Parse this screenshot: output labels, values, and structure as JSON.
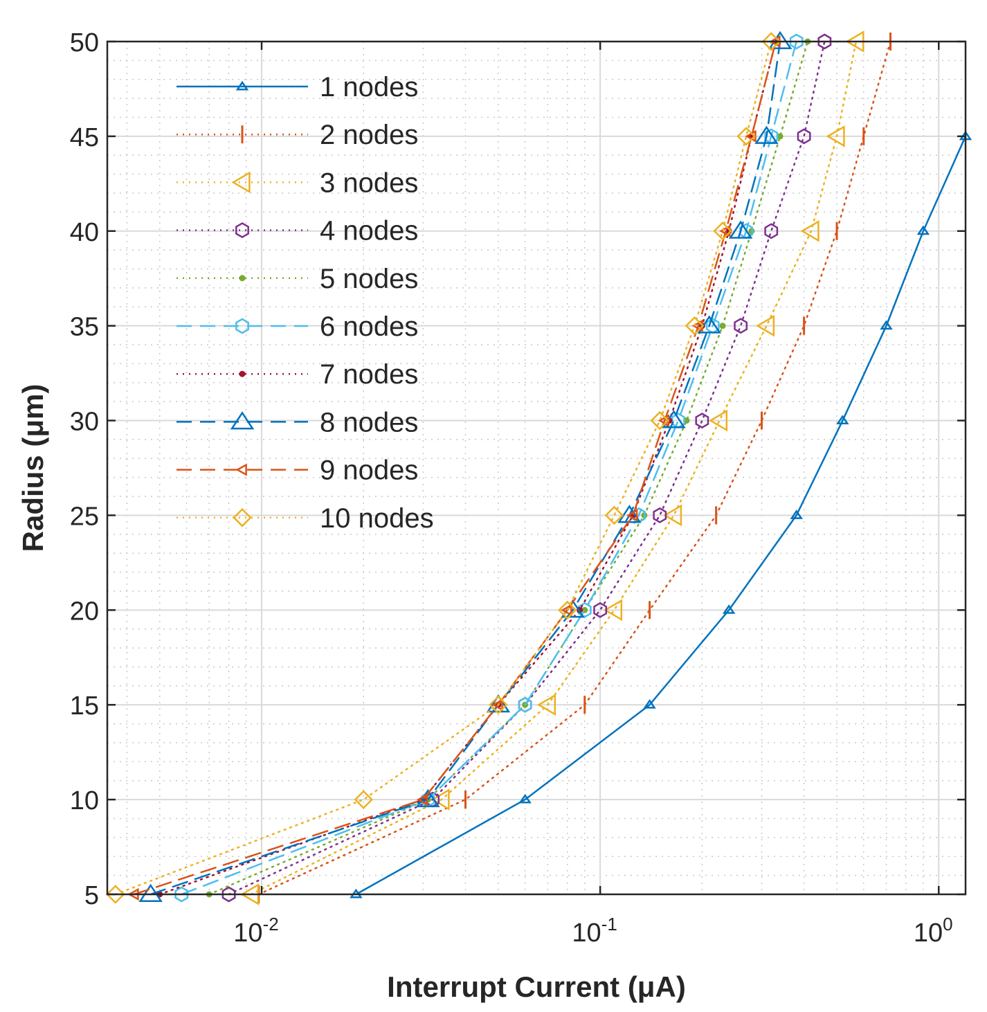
{
  "chart_data": {
    "type": "line",
    "xscale": "log",
    "xlim": [
      0.0035,
      1.2
    ],
    "ylim": [
      5,
      50
    ],
    "xlabel": "Interrupt Current (μA)",
    "ylabel": "Radius (μm)",
    "x_ticks": [
      {
        "value": 0.01,
        "base": "10",
        "exp": "-2"
      },
      {
        "value": 0.1,
        "base": "10",
        "exp": "-1"
      },
      {
        "value": 1,
        "base": "10",
        "exp": "0"
      }
    ],
    "y_ticks": [
      5,
      10,
      15,
      20,
      25,
      30,
      35,
      40,
      45,
      50
    ],
    "grid": true,
    "minor_grid": true,
    "legend_position": "top-left",
    "radii": [
      5,
      10,
      15,
      20,
      25,
      30,
      35,
      40,
      45
    ],
    "series": [
      {
        "name": "1 nodes",
        "color": "#0072BD",
        "line": "solid",
        "marker": "triangle-up-small",
        "x": [
          0.019,
          0.06,
          0.14,
          0.24,
          0.38,
          0.52,
          0.7,
          0.9,
          1.2
        ],
        "y": [
          5,
          10,
          15,
          20,
          25,
          30,
          35,
          40,
          45
        ]
      },
      {
        "name": "2 nodes",
        "color": "#D95319",
        "line": "dotted",
        "marker": "vline",
        "x": [
          0.0098,
          0.04,
          0.09,
          0.14,
          0.22,
          0.3,
          0.4,
          0.5,
          0.6,
          0.72
        ],
        "y": [
          5,
          10,
          15,
          20,
          25,
          30,
          35,
          40,
          45,
          50
        ]
      },
      {
        "name": "3 nodes",
        "color": "#EDB120",
        "line": "dotted",
        "marker": "triangle-left",
        "x": [
          0.0093,
          0.034,
          0.07,
          0.11,
          0.165,
          0.225,
          0.31,
          0.42,
          0.5,
          0.57
        ],
        "y": [
          5,
          10,
          15,
          20,
          25,
          30,
          35,
          40,
          45,
          50
        ]
      },
      {
        "name": "4 nodes",
        "color": "#7E2F8E",
        "line": "dotted",
        "marker": "hexagon",
        "x": [
          0.008,
          0.032,
          0.06,
          0.1,
          0.15,
          0.2,
          0.26,
          0.32,
          0.4,
          0.46
        ],
        "y": [
          5,
          10,
          15,
          20,
          25,
          30,
          35,
          40,
          45,
          50
        ]
      },
      {
        "name": "5 nodes",
        "color": "#77AC30",
        "line": "dotted",
        "marker": "dot",
        "x": [
          0.007,
          0.031,
          0.06,
          0.09,
          0.135,
          0.18,
          0.23,
          0.28,
          0.34,
          0.41
        ],
        "y": [
          5,
          10,
          15,
          20,
          25,
          30,
          35,
          40,
          45,
          50
        ]
      },
      {
        "name": "6 nodes",
        "color": "#4DBEEE",
        "line": "dashed",
        "marker": "hexagon",
        "x": [
          0.0058,
          0.031,
          0.06,
          0.09,
          0.13,
          0.17,
          0.215,
          0.27,
          0.32,
          0.38
        ],
        "y": [
          5,
          10,
          15,
          20,
          25,
          30,
          35,
          40,
          45,
          50
        ]
      },
      {
        "name": "7 nodes",
        "color": "#A2142F",
        "line": "dotted",
        "marker": "dot",
        "x": [
          0.005,
          0.03,
          0.05,
          0.087,
          0.125,
          0.16,
          0.2,
          0.24,
          0.28,
          0.33
        ],
        "y": [
          5,
          10,
          15,
          20,
          25,
          30,
          35,
          40,
          45,
          50
        ]
      },
      {
        "name": "8 nodes",
        "color": "#0072BD",
        "line": "dashed",
        "marker": "triangle-up",
        "x": [
          0.0047,
          0.031,
          0.05,
          0.083,
          0.122,
          0.165,
          0.21,
          0.26,
          0.31,
          0.34
        ],
        "y": [
          5,
          10,
          15,
          20,
          25,
          30,
          35,
          40,
          45,
          50
        ]
      },
      {
        "name": "9 nodes",
        "color": "#D95319",
        "line": "dashed",
        "marker": "triangle-left-small",
        "x": [
          0.0042,
          0.03,
          0.05,
          0.08,
          0.125,
          0.155,
          0.195,
          0.235,
          0.28,
          0.33
        ],
        "y": [
          5,
          10,
          15,
          20,
          25,
          30,
          35,
          40,
          45,
          50
        ]
      },
      {
        "name": "10 nodes",
        "color": "#EDB120",
        "line": "dotted",
        "marker": "diamond",
        "x": [
          0.0037,
          0.02,
          0.05,
          0.08,
          0.11,
          0.15,
          0.19,
          0.23,
          0.27,
          0.32
        ],
        "y": [
          5,
          10,
          15,
          20,
          25,
          30,
          35,
          40,
          45,
          50
        ]
      }
    ]
  }
}
